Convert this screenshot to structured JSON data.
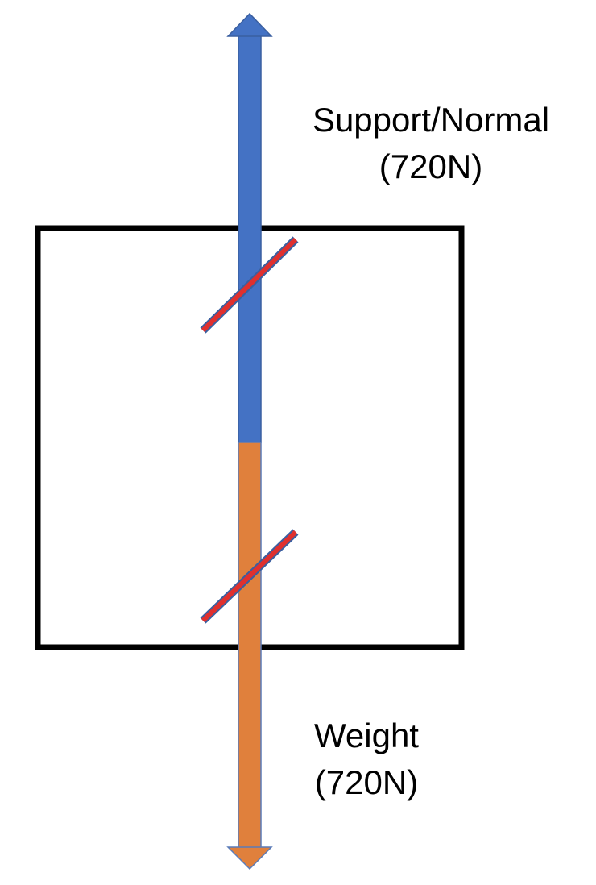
{
  "support_force": {
    "name": "Support/Normal",
    "magnitude": "(720N)",
    "color": "#4472C4"
  },
  "weight_force": {
    "name": "Weight",
    "magnitude": "(720N)",
    "color": "#E0803C"
  },
  "equality_marks": {
    "count": 2,
    "color": "#E0302E"
  },
  "object_box": {
    "color": "#000000"
  }
}
